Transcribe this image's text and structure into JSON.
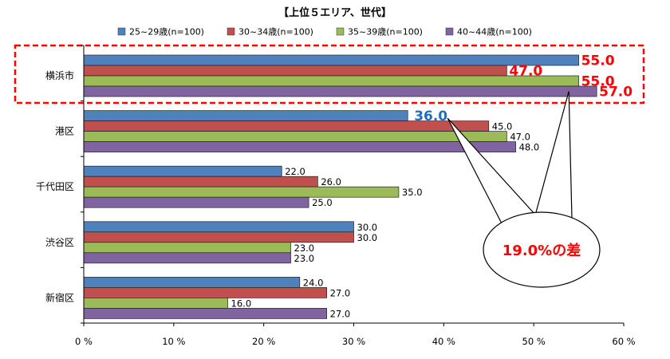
{
  "chart_data": {
    "type": "bar",
    "orientation": "horizontal",
    "title": "【上位５エリア、世代】",
    "categories": [
      "横浜市",
      "港区",
      "千代田区",
      "渋谷区",
      "新宿区"
    ],
    "series": [
      {
        "name": "25~29歳(n=100)",
        "color": "#4F81BD",
        "values": [
          55.0,
          36.0,
          22.0,
          30.0,
          24.0
        ]
      },
      {
        "name": "30~34歳(n=100)",
        "color": "#C0504D",
        "values": [
          47.0,
          45.0,
          26.0,
          30.0,
          27.0
        ]
      },
      {
        "name": "35~39歳(n=100)",
        "color": "#9BBB59",
        "values": [
          55.0,
          47.0,
          35.0,
          23.0,
          16.0
        ]
      },
      {
        "name": "40~44歳(n=100)",
        "color": "#8064A2",
        "values": [
          57.0,
          48.0,
          25.0,
          23.0,
          27.0
        ]
      }
    ],
    "value_labels": [
      [
        "55.0",
        "36.0",
        "22.0",
        "30.0",
        "24.0"
      ],
      [
        "47.0",
        "45.0",
        "26.0",
        "30.0",
        "27.0"
      ],
      [
        "55.0",
        "47.0",
        "35.0",
        "23.0",
        "16.0"
      ],
      [
        "57.0",
        "48.0",
        "25.0",
        "23.0",
        "27.0"
      ]
    ],
    "xlim": [
      0,
      60
    ],
    "xticks": [
      0,
      10,
      20,
      30,
      40,
      50,
      60
    ],
    "xtick_labels": [
      "0 %",
      "10 %",
      "20 %",
      "30 %",
      "40 %",
      "50 %",
      "60 %"
    ],
    "legend_position": "top",
    "grid": false,
    "highlight": {
      "category": "横浜市",
      "label_color": "#FF0000",
      "box_color": "#FF0000"
    },
    "callout": {
      "text": "19.0%の差",
      "color": "#FF0000"
    },
    "accent_label": {
      "category": "港区",
      "series_index": 0,
      "color": "#1F6FC0"
    }
  }
}
